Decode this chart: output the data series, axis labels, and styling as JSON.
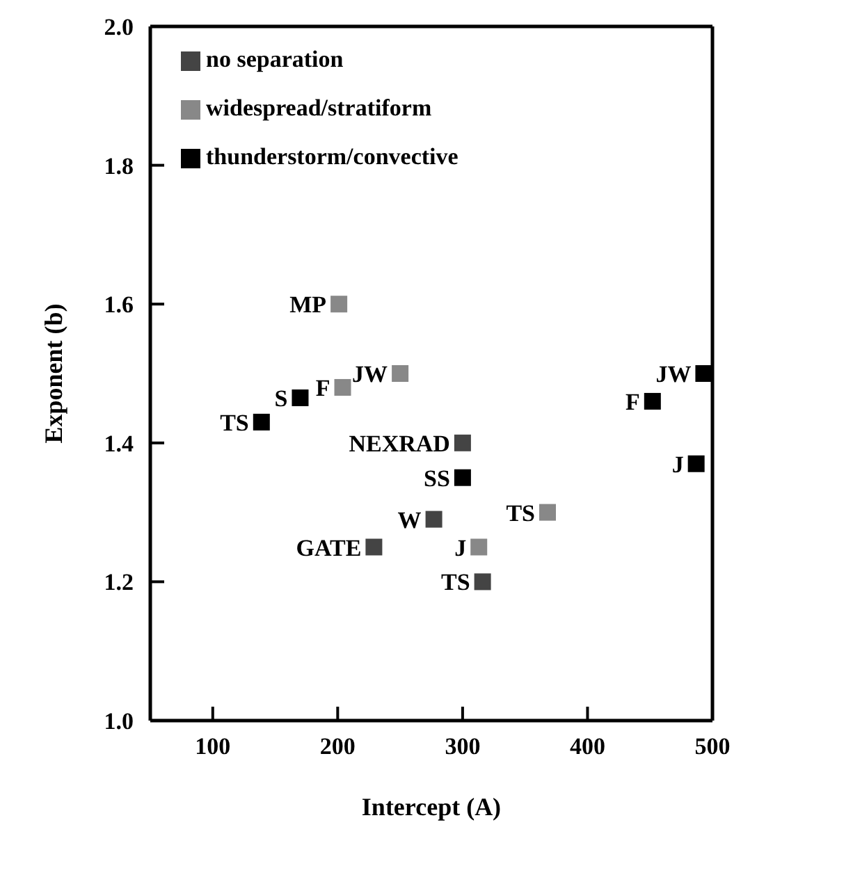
{
  "chart_data": {
    "type": "scatter",
    "xlabel": "Intercept (A)",
    "ylabel": "Exponent (b)",
    "xlim": [
      50,
      500
    ],
    "xticks": [
      100,
      200,
      300,
      400,
      500
    ],
    "ylim": [
      1.0,
      2.0
    ],
    "yticks": [
      {
        "value": 1.0,
        "label": "1.0"
      },
      1.2,
      1.4,
      1.6,
      1.8,
      {
        "value": 2.0,
        "label": "2.0"
      }
    ],
    "legend": "top left",
    "marker": "square",
    "series": [
      {
        "name": "no separation",
        "color": "#444444",
        "x": [
          300,
          277,
          229,
          316
        ],
        "values": [
          1.4,
          1.29,
          1.25,
          1.2
        ]
      },
      {
        "name": "widespread/stratiform",
        "color": "#888888",
        "x": [
          201,
          204,
          250,
          313,
          368
        ],
        "values": [
          1.6,
          1.48,
          1.5,
          1.25,
          1.3
        ]
      },
      {
        "name": "thunderstorm/convective",
        "color": "#000000",
        "x": [
          139,
          170,
          300,
          452,
          493,
          487
        ],
        "values": [
          1.43,
          1.465,
          1.35,
          1.46,
          1.5,
          1.37
        ]
      }
    ],
    "annotations": [
      {
        "text": "NEXRAD",
        "x": 300,
        "y": 1.4
      },
      {
        "text": "W",
        "x": 277,
        "y": 1.29
      },
      {
        "text": "GATE",
        "x": 229,
        "y": 1.25
      },
      {
        "text": "TS",
        "x": 316,
        "y": 1.2
      },
      {
        "text": "MP",
        "x": 201,
        "y": 1.6
      },
      {
        "text": "F",
        "x": 204,
        "y": 1.48
      },
      {
        "text": "JW",
        "x": 250,
        "y": 1.5
      },
      {
        "text": "J",
        "x": 313,
        "y": 1.25
      },
      {
        "text": "TS",
        "x": 368,
        "y": 1.3
      },
      {
        "text": "TS",
        "x": 139,
        "y": 1.43
      },
      {
        "text": "S",
        "x": 170,
        "y": 1.465
      },
      {
        "text": "SS",
        "x": 300,
        "y": 1.35
      },
      {
        "text": "F",
        "x": 452,
        "y": 1.46
      },
      {
        "text": "JW",
        "x": 493,
        "y": 1.5
      },
      {
        "text": "J",
        "x": 487,
        "y": 1.37
      }
    ]
  }
}
